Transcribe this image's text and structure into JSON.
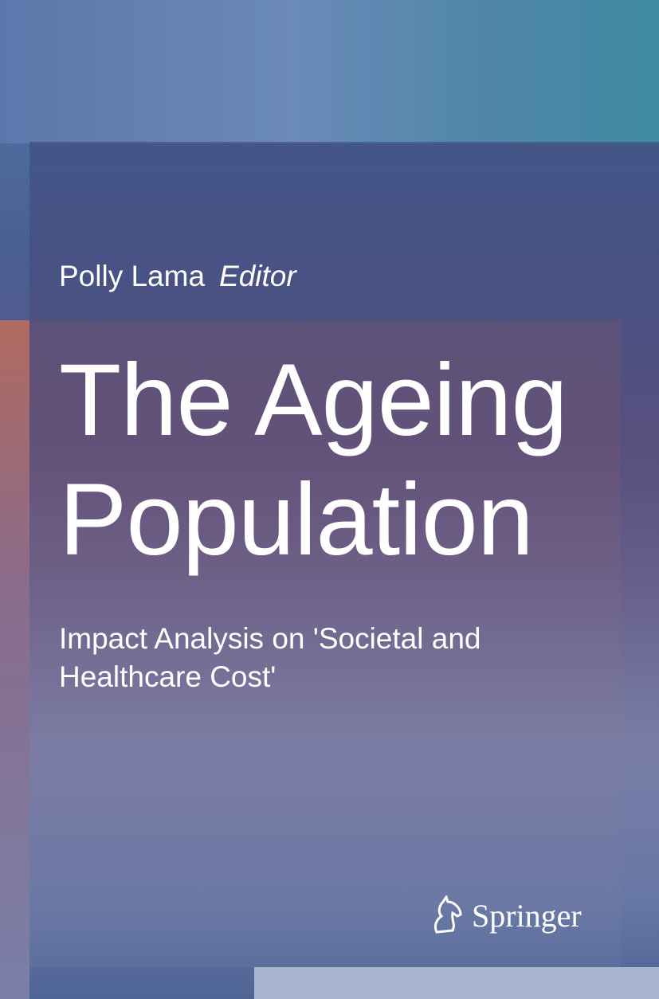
{
  "cover": {
    "author": "Polly Lama",
    "role": "Editor",
    "title_line1": "The Ageing",
    "title_line2": "Population",
    "subtitle": "Impact Analysis on 'Societal and Healthcare Cost'",
    "publisher": "Springer"
  }
}
